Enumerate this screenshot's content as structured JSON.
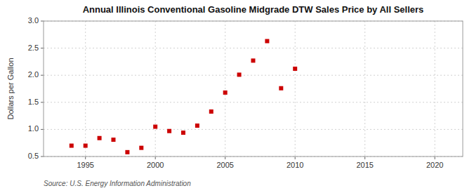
{
  "chart_data": {
    "type": "scatter",
    "title": "Annual Illinois Conventional Gasoline Midgrade DTW Sales Price by All Sellers",
    "ylabel": "Dollars per Gallon",
    "annotation": "Source: U.S. Energy Information Administration",
    "x": [
      1994,
      1995,
      1996,
      1997,
      1998,
      1999,
      2000,
      2001,
      2002,
      2003,
      2004,
      2005,
      2006,
      2007,
      2008,
      2009,
      2010
    ],
    "values": [
      0.7,
      0.7,
      0.84,
      0.81,
      0.58,
      0.66,
      1.05,
      0.97,
      0.94,
      1.07,
      1.33,
      1.68,
      2.01,
      2.27,
      2.63,
      1.76,
      2.12
    ],
    "color": "#cc0000",
    "marker": "square",
    "xlim": [
      1992,
      2022
    ],
    "ylim": [
      0.5,
      3.0
    ],
    "xticks": [
      1995,
      2000,
      2005,
      2010,
      2015,
      2020
    ],
    "yticks": [
      0.5,
      {
        "value": 1.0,
        "label": "1.0"
      },
      1.5,
      {
        "value": 2.0,
        "label": "2.0"
      },
      2.5,
      {
        "value": 3.0,
        "label": "3.0"
      }
    ],
    "grid": true
  }
}
